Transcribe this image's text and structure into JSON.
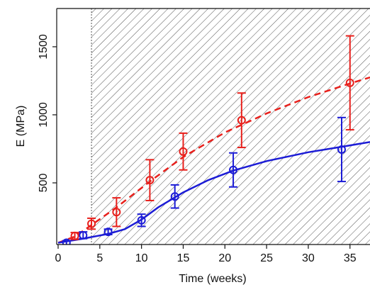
{
  "chart_data": {
    "type": "errorbar",
    "x_label": "Time (weeks)",
    "y_label": "E (MPa)",
    "xlim": [
      0,
      37.4
    ],
    "ylim": [
      47,
      1781
    ],
    "xticks": [
      0,
      5,
      10,
      15,
      20,
      25,
      30,
      35
    ],
    "yticks": [
      500,
      1000,
      1500
    ],
    "shade_from": 4,
    "shade_color": "#555555",
    "points": [
      {
        "color": "#e8201c",
        "x": [
          2,
          4,
          7,
          11,
          15,
          22,
          35
        ],
        "values": [
          110,
          200,
          285,
          520,
          730,
          960,
          1235
        ],
        "errors": [
          25,
          40,
          105,
          150,
          135,
          200,
          345
        ]
      },
      {
        "color": "#1c1cd6",
        "x": [
          1,
          3,
          6,
          10,
          14,
          21,
          34
        ],
        "values": [
          60,
          115,
          140,
          225,
          400,
          595,
          745
        ],
        "errors": [
          15,
          25,
          20,
          45,
          85,
          125,
          235
        ]
      }
    ],
    "fits": [
      {
        "color": "#e8201c",
        "dash": true,
        "x": [
          0,
          2,
          4,
          7,
          11,
          15,
          20,
          25,
          30,
          35,
          37.4
        ],
        "values": [
          60,
          105,
          190,
          320,
          510,
          690,
          870,
          1010,
          1130,
          1230,
          1275
        ]
      },
      {
        "color": "#1c1cd6",
        "dash": false,
        "x": [
          0,
          3,
          6,
          8,
          10,
          12,
          15,
          18,
          21,
          25,
          30,
          34,
          37.4
        ],
        "values": [
          60,
          90,
          125,
          160,
          230,
          320,
          430,
          520,
          590,
          660,
          725,
          765,
          800
        ]
      }
    ]
  }
}
